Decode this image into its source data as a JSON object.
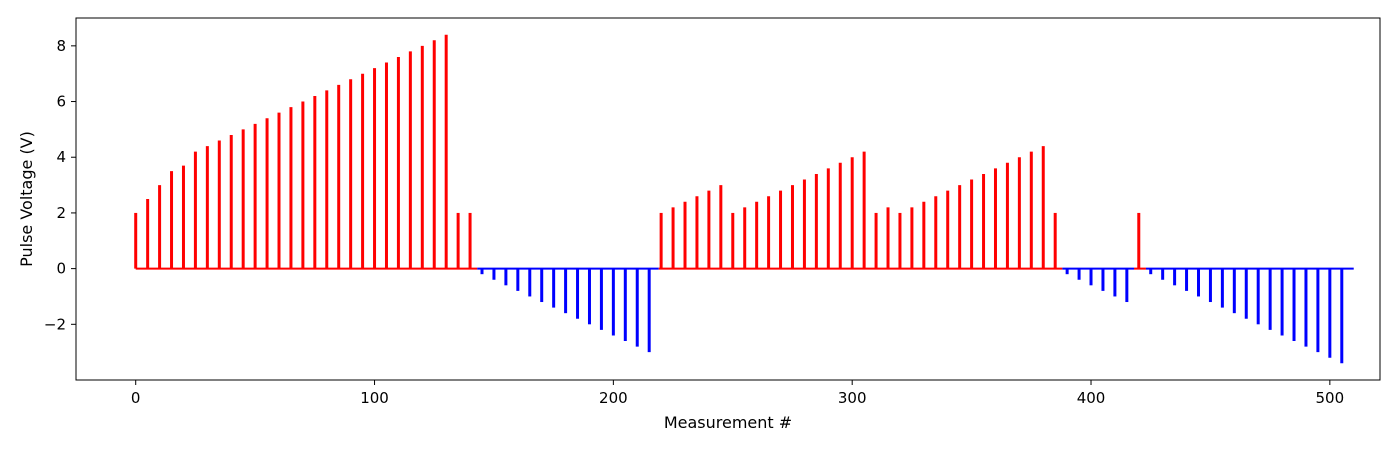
{
  "chart_data": {
    "type": "bar",
    "title": "",
    "xlabel": "Measurement #",
    "ylabel": "Pulse Voltage (V)",
    "xlim": [
      -25,
      521
    ],
    "ylim": [
      -4.0,
      9.0
    ],
    "xticks": [
      0,
      100,
      200,
      300,
      400,
      500
    ],
    "xtick_labels": [
      "0",
      "100",
      "200",
      "300",
      "400",
      "500"
    ],
    "yticks": [
      -2,
      0,
      2,
      4,
      6,
      8
    ],
    "ytick_labels": [
      "−2",
      "0",
      "2",
      "4",
      "6",
      "8"
    ],
    "grid": false,
    "colors": {
      "positive": "#ff0000",
      "negative": "#0000ff",
      "axes": "#000000"
    },
    "series": [
      {
        "segments": [
          {
            "range": [
              0,
              143
            ],
            "color": "#ff0000",
            "pulses": [
              [
                0,
                2.0
              ],
              [
                5,
                2.5
              ],
              [
                10,
                3.0
              ],
              [
                15,
                3.5
              ],
              [
                20,
                3.7
              ],
              [
                25,
                4.2
              ],
              [
                30,
                4.4
              ],
              [
                35,
                4.6
              ],
              [
                40,
                4.8
              ],
              [
                45,
                5.0
              ],
              [
                50,
                5.2
              ],
              [
                55,
                5.4
              ],
              [
                60,
                5.6
              ],
              [
                65,
                5.8
              ],
              [
                70,
                6.0
              ],
              [
                75,
                6.2
              ],
              [
                80,
                6.4
              ],
              [
                85,
                6.6
              ],
              [
                90,
                6.8
              ],
              [
                95,
                7.0
              ],
              [
                100,
                7.2
              ],
              [
                105,
                7.4
              ],
              [
                110,
                7.6
              ],
              [
                115,
                7.8
              ],
              [
                120,
                8.0
              ],
              [
                125,
                8.2
              ],
              [
                130,
                8.4
              ],
              [
                135,
                2.0
              ],
              [
                140,
                2.0
              ]
            ]
          },
          {
            "range": [
              143,
              219
            ],
            "color": "#0000ff",
            "pulses": [
              [
                145,
                -0.2
              ],
              [
                150,
                -0.4
              ],
              [
                155,
                -0.6
              ],
              [
                160,
                -0.8
              ],
              [
                165,
                -1.0
              ],
              [
                170,
                -1.2
              ],
              [
                175,
                -1.4
              ],
              [
                180,
                -1.6
              ],
              [
                185,
                -1.8
              ],
              [
                190,
                -2.0
              ],
              [
                195,
                -2.2
              ],
              [
                200,
                -2.4
              ],
              [
                205,
                -2.6
              ],
              [
                210,
                -2.8
              ],
              [
                215,
                -3.0
              ]
            ]
          },
          {
            "range": [
              219,
              388
            ],
            "color": "#ff0000",
            "pulses": [
              [
                220,
                2.0
              ],
              [
                225,
                2.2
              ],
              [
                230,
                2.4
              ],
              [
                235,
                2.6
              ],
              [
                240,
                2.8
              ],
              [
                245,
                3.0
              ],
              [
                250,
                2.0
              ],
              [
                255,
                2.2
              ],
              [
                260,
                2.4
              ],
              [
                265,
                2.6
              ],
              [
                270,
                2.8
              ],
              [
                275,
                3.0
              ],
              [
                280,
                3.2
              ],
              [
                285,
                3.4
              ],
              [
                290,
                3.6
              ],
              [
                295,
                3.8
              ],
              [
                300,
                4.0
              ],
              [
                305,
                4.2
              ],
              [
                310,
                2.0
              ],
              [
                315,
                2.2
              ],
              [
                320,
                2.0
              ],
              [
                325,
                2.2
              ],
              [
                330,
                2.4
              ],
              [
                335,
                2.6
              ],
              [
                340,
                2.8
              ],
              [
                345,
                3.0
              ],
              [
                350,
                3.2
              ],
              [
                355,
                3.4
              ],
              [
                360,
                3.6
              ],
              [
                365,
                3.8
              ],
              [
                370,
                4.0
              ],
              [
                375,
                4.2
              ],
              [
                380,
                4.4
              ],
              [
                385,
                2.0
              ]
            ]
          },
          {
            "range": [
              388,
              418
            ],
            "color": "#0000ff",
            "pulses": [
              [
                390,
                -0.2
              ],
              [
                395,
                -0.4
              ],
              [
                400,
                -0.6
              ],
              [
                405,
                -0.8
              ],
              [
                410,
                -1.0
              ],
              [
                415,
                -1.2
              ]
            ]
          },
          {
            "range": [
              418,
              423
            ],
            "color": "#ff0000",
            "pulses": [
              [
                420,
                2.0
              ]
            ]
          },
          {
            "range": [
              423,
              510
            ],
            "color": "#0000ff",
            "pulses": [
              [
                425,
                -0.2
              ],
              [
                430,
                -0.4
              ],
              [
                435,
                -0.6
              ],
              [
                440,
                -0.8
              ],
              [
                445,
                -1.0
              ],
              [
                450,
                -1.2
              ],
              [
                455,
                -1.4
              ],
              [
                460,
                -1.6
              ],
              [
                465,
                -1.8
              ],
              [
                470,
                -2.0
              ],
              [
                475,
                -2.2
              ],
              [
                480,
                -2.4
              ],
              [
                485,
                -2.6
              ],
              [
                490,
                -2.8
              ],
              [
                495,
                -3.0
              ],
              [
                500,
                -3.2
              ],
              [
                505,
                -3.4
              ]
            ]
          }
        ]
      }
    ]
  }
}
